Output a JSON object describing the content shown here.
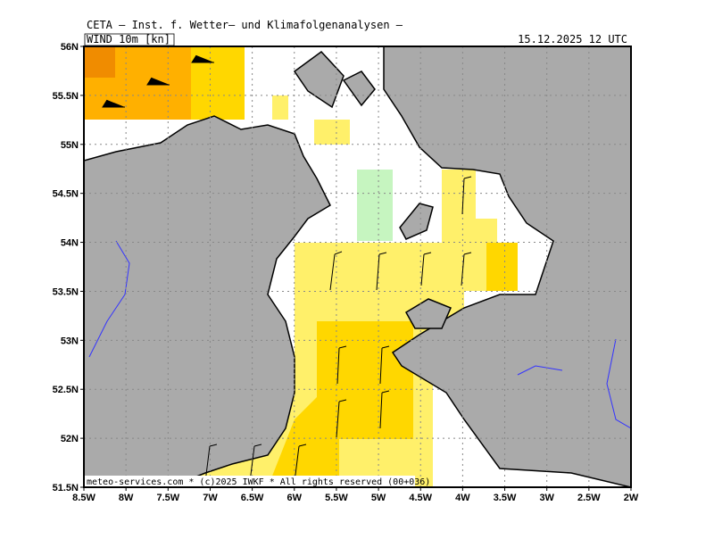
{
  "header": {
    "title": "CETA — Inst. f. Wetter— und Klimafolgenanalysen —",
    "datetime": "15.12.2025 12 UTC",
    "field": "WIND 10m [kn]"
  },
  "footer": "meteo-services.com * (c)2025 IWKF * All rights reserved (00+036)",
  "map": {
    "lonlim": [
      -8.5,
      -2
    ],
    "latlim": [
      51.5,
      56
    ],
    "lon_ticks": [
      {
        "value": -8.5,
        "label": "8.5W"
      },
      {
        "value": -8,
        "label": "8W"
      },
      {
        "value": -7.5,
        "label": "7.5W"
      },
      {
        "value": -7,
        "label": "7W"
      },
      {
        "value": -6.5,
        "label": "6.5W"
      },
      {
        "value": -6,
        "label": "6W"
      },
      {
        "value": -5.5,
        "label": "5.5W"
      },
      {
        "value": -5,
        "label": "5W"
      },
      {
        "value": -4.5,
        "label": "4.5W"
      },
      {
        "value": -4,
        "label": "4W"
      },
      {
        "value": -3.5,
        "label": "3.5W"
      },
      {
        "value": -3,
        "label": "3W"
      },
      {
        "value": -2.5,
        "label": "2.5W"
      },
      {
        "value": -2,
        "label": "2W"
      }
    ],
    "lat_ticks": [
      {
        "value": 51.5,
        "label": "51.5N"
      },
      {
        "value": 52,
        "label": "52N"
      },
      {
        "value": 52.5,
        "label": "52.5N"
      },
      {
        "value": 53,
        "label": "53N"
      },
      {
        "value": 53.5,
        "label": "53.5N"
      },
      {
        "value": 54,
        "label": "54N"
      },
      {
        "value": 54.5,
        "label": "54.5N"
      },
      {
        "value": 55,
        "label": "55N"
      },
      {
        "value": 55.5,
        "label": "55.5N"
      },
      {
        "value": 56,
        "label": "56N"
      }
    ]
  }
}
